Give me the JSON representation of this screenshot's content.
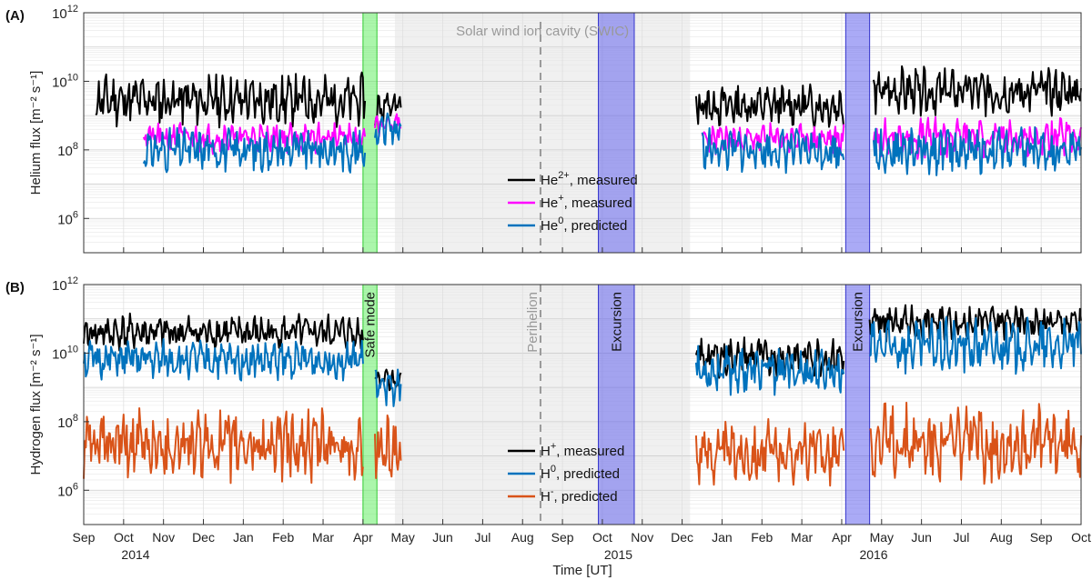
{
  "figure": {
    "xlabel": "Time [UT]",
    "x_months": [
      "Sep",
      "Oct",
      "Nov",
      "Dec",
      "Jan",
      "Feb",
      "Mar",
      "Apr",
      "May",
      "Jun",
      "Jul",
      "Aug",
      "Sep",
      "Oct",
      "Nov",
      "Dec",
      "Jan",
      "Feb",
      "Mar",
      "Apr",
      "May",
      "Jun",
      "Jul",
      "Aug",
      "Sep",
      "Oct"
    ],
    "x_years": [
      {
        "label": "2014",
        "month_index": 1.3
      },
      {
        "label": "2015",
        "month_index": 13.4
      },
      {
        "label": "2016",
        "month_index": 19.8
      }
    ],
    "colors": {
      "black": "#000000",
      "magenta": "#ff00ff",
      "blue": "#0072bd",
      "orange": "#d95319",
      "grid": "#d9d9d9",
      "green": "#66ee66",
      "purple": "#5555ee",
      "dashed": "#999999"
    }
  },
  "chart_data": [
    {
      "type": "line",
      "panel": "(A)",
      "ylabel": "Helium flux [m⁻² s⁻¹]",
      "yscale": "log",
      "ylim": [
        100000,
        1000000000000
      ],
      "yticks": [
        {
          "base": "10",
          "exp": "6",
          "value": 1000000
        },
        {
          "base": "10",
          "exp": "8",
          "value": 100000000
        },
        {
          "base": "10",
          "exp": "10",
          "value": 10000000000
        },
        {
          "base": "10",
          "exp": "12",
          "value": 1000000000000
        }
      ],
      "x_range_months": [
        0,
        25
      ],
      "annotations": {
        "swic_label": "Solar wind ion cavity (SWIC)",
        "swic_range_months": [
          7.8,
          15.2
        ],
        "safe_mode_range_months": [
          7.0,
          7.35
        ],
        "excursions_months": [
          [
            12.9,
            13.8
          ],
          [
            19.1,
            19.7
          ]
        ],
        "perihelion_month": 11.45
      },
      "series": [
        {
          "name": "He2+, measured",
          "base": "He",
          "sup": "2+",
          "suffix": ", measured",
          "color": "#000000",
          "segments": [
            {
              "x_start": 0.3,
              "x_end": 7.05,
              "log_mid": 9.45,
              "amp": 0.65,
              "seed": 11
            },
            {
              "x_start": 7.3,
              "x_end": 7.95,
              "log_mid": 9.2,
              "amp": 0.45,
              "seed": 12
            },
            {
              "x_start": 15.35,
              "x_end": 19.05,
              "log_mid": 9.3,
              "amp": 0.55,
              "seed": 13
            },
            {
              "x_start": 19.8,
              "x_end": 25.0,
              "log_mid": 9.7,
              "amp": 0.6,
              "seed": 14
            }
          ]
        },
        {
          "name": "He+, measured",
          "base": "He",
          "sup": "+",
          "suffix": ", measured",
          "color": "#ff00ff",
          "segments": [
            {
              "x_start": 1.5,
              "x_end": 7.05,
              "log_mid": 8.35,
              "amp": 0.4,
              "seed": 21
            },
            {
              "x_start": 7.3,
              "x_end": 7.95,
              "log_mid": 8.8,
              "amp": 0.35,
              "seed": 22
            },
            {
              "x_start": 15.5,
              "x_end": 19.05,
              "log_mid": 8.3,
              "amp": 0.4,
              "seed": 23
            },
            {
              "x_start": 19.8,
              "x_end": 25.0,
              "log_mid": 8.35,
              "amp": 0.5,
              "seed": 24
            }
          ]
        },
        {
          "name": "He0, predicted",
          "base": "He",
          "sup": "0",
          "suffix": ", predicted",
          "color": "#0072bd",
          "segments": [
            {
              "x_start": 1.5,
              "x_end": 7.05,
              "log_mid": 8.0,
              "amp": 0.55,
              "seed": 31
            },
            {
              "x_start": 7.3,
              "x_end": 7.95,
              "log_mid": 8.6,
              "amp": 0.4,
              "seed": 32
            },
            {
              "x_start": 15.5,
              "x_end": 19.05,
              "log_mid": 8.0,
              "amp": 0.55,
              "seed": 33
            },
            {
              "x_start": 19.8,
              "x_end": 25.0,
              "log_mid": 8.0,
              "amp": 0.6,
              "seed": 34
            }
          ]
        }
      ]
    },
    {
      "type": "line",
      "panel": "(B)",
      "ylabel": "Hydrogen flux [m⁻² s⁻¹]",
      "yscale": "log",
      "ylim": [
        100000,
        1000000000000
      ],
      "yticks": [
        {
          "base": "10",
          "exp": "6",
          "value": 1000000
        },
        {
          "base": "10",
          "exp": "8",
          "value": 100000000
        },
        {
          "base": "10",
          "exp": "10",
          "value": 10000000000
        },
        {
          "base": "10",
          "exp": "12",
          "value": 1000000000000
        }
      ],
      "x_range_months": [
        0,
        25
      ],
      "annotations": {
        "safe_mode_label": "Safe mode",
        "perihelion_label": "Perihelion",
        "excursion_label": "Excursion",
        "safe_mode_range_months": [
          7.0,
          7.35
        ],
        "excursions_months": [
          [
            12.9,
            13.8
          ],
          [
            19.1,
            19.7
          ]
        ],
        "perihelion_month": 11.45
      },
      "series": [
        {
          "name": "H+, measured",
          "base": "H",
          "sup": "+",
          "suffix": ", measured",
          "color": "#000000",
          "segments": [
            {
              "x_start": 0.0,
              "x_end": 7.0,
              "log_mid": 10.6,
              "amp": 0.45,
              "seed": 41
            },
            {
              "x_start": 7.3,
              "x_end": 7.95,
              "log_mid": 9.2,
              "amp": 0.3,
              "seed": 42
            },
            {
              "x_start": 15.35,
              "x_end": 19.05,
              "log_mid": 9.9,
              "amp": 0.5,
              "seed": 43
            },
            {
              "x_start": 19.7,
              "x_end": 25.0,
              "log_mid": 10.9,
              "amp": 0.45,
              "seed": 44
            }
          ]
        },
        {
          "name": "H0, predicted",
          "base": "H",
          "sup": "0",
          "suffix": ", predicted",
          "color": "#0072bd",
          "segments": [
            {
              "x_start": 0.0,
              "x_end": 7.0,
              "log_mid": 9.8,
              "amp": 0.5,
              "seed": 51
            },
            {
              "x_start": 7.3,
              "x_end": 7.95,
              "log_mid": 9.0,
              "amp": 0.45,
              "seed": 52
            },
            {
              "x_start": 15.35,
              "x_end": 19.05,
              "log_mid": 9.5,
              "amp": 0.6,
              "seed": 53
            },
            {
              "x_start": 19.7,
              "x_end": 25.0,
              "log_mid": 10.2,
              "amp": 0.7,
              "seed": 54
            }
          ]
        },
        {
          "name": "H-, predicted",
          "base": "H",
          "sup": "-",
          "suffix": ", predicted",
          "color": "#d95319",
          "segments": [
            {
              "x_start": 0.0,
              "x_end": 7.0,
              "log_mid": 7.3,
              "amp": 0.9,
              "seed": 61
            },
            {
              "x_start": 7.3,
              "x_end": 7.95,
              "log_mid": 7.2,
              "amp": 0.8,
              "seed": 62
            },
            {
              "x_start": 15.35,
              "x_end": 19.05,
              "log_mid": 7.1,
              "amp": 0.8,
              "seed": 63
            },
            {
              "x_start": 19.7,
              "x_end": 25.0,
              "log_mid": 7.4,
              "amp": 1.0,
              "seed": 64
            }
          ]
        }
      ]
    }
  ]
}
